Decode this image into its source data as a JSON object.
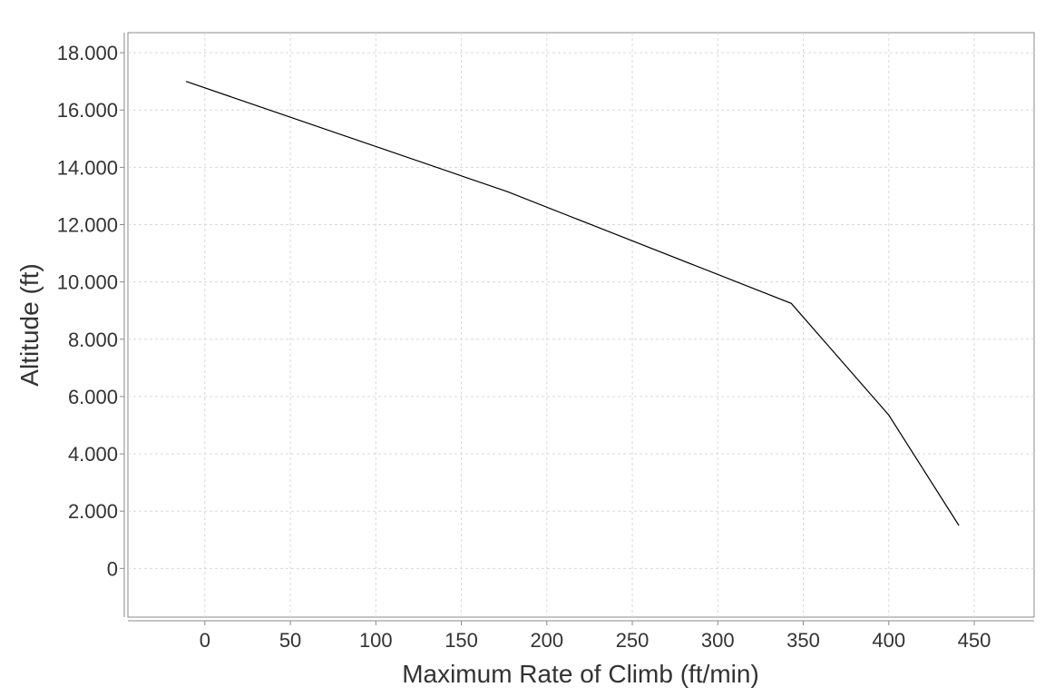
{
  "chart_data": {
    "type": "line",
    "title": "",
    "xlabel": "Maximum Rate of Climb (ft/min)",
    "ylabel": "Altitude (ft)",
    "xlim": [
      -45,
      485
    ],
    "ylim": [
      -1700,
      18700
    ],
    "x_ticks": [
      0,
      50,
      100,
      150,
      200,
      250,
      300,
      350,
      400,
      450
    ],
    "x_tick_labels": [
      "0",
      "50",
      "100",
      "150",
      "200",
      "250",
      "300",
      "350",
      "400",
      "450"
    ],
    "y_ticks": [
      0,
      2000,
      4000,
      6000,
      8000,
      10000,
      12000,
      14000,
      16000,
      18000
    ],
    "y_tick_labels": [
      "0",
      "2.000",
      "4.000",
      "6.000",
      "8.000",
      "10.000",
      "12.000",
      "14.000",
      "16.000",
      "18.000"
    ],
    "grid": true,
    "series": [
      {
        "name": "Altitude",
        "color": "#000000",
        "x": [
          -11,
          177,
          343,
          400,
          441
        ],
        "y": [
          17000,
          13150,
          9250,
          5350,
          1500
        ]
      }
    ]
  }
}
